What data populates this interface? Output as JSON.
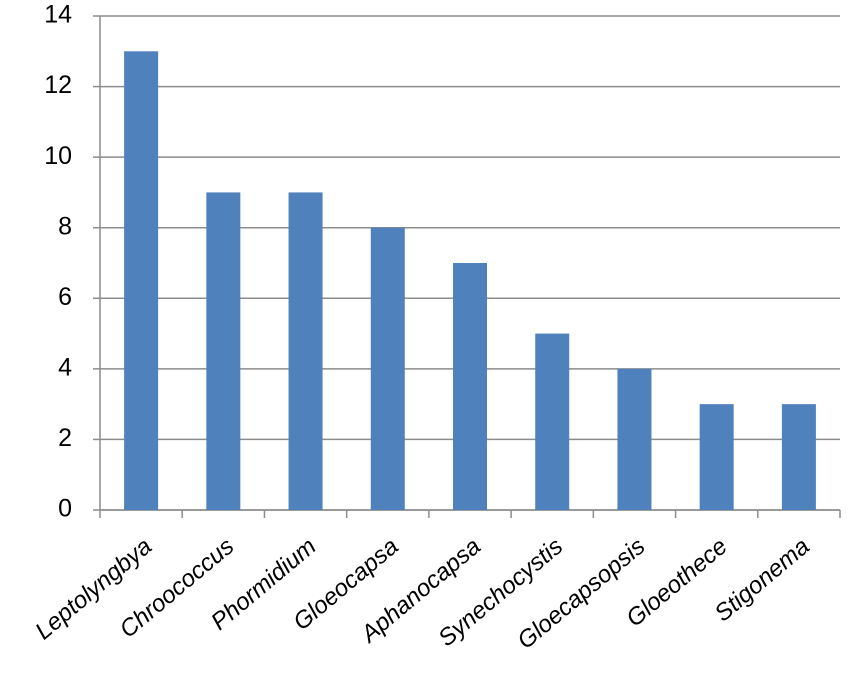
{
  "chart_data": {
    "type": "bar",
    "categories": [
      "Leptolyngbya",
      "Chroococcus",
      "Phormidium",
      "Gloeocapsa",
      "Aphanocapsa",
      "Synechocystis",
      "Gloecapsopsis",
      "Gloeothece",
      "Stigonema"
    ],
    "values": [
      13,
      9,
      9,
      8,
      7,
      5,
      4,
      3,
      3
    ],
    "color": "#4f81bd",
    "ylim": [
      0,
      14
    ],
    "yticks": [
      0,
      2,
      4,
      6,
      8,
      10,
      12,
      14
    ],
    "grid": true
  }
}
